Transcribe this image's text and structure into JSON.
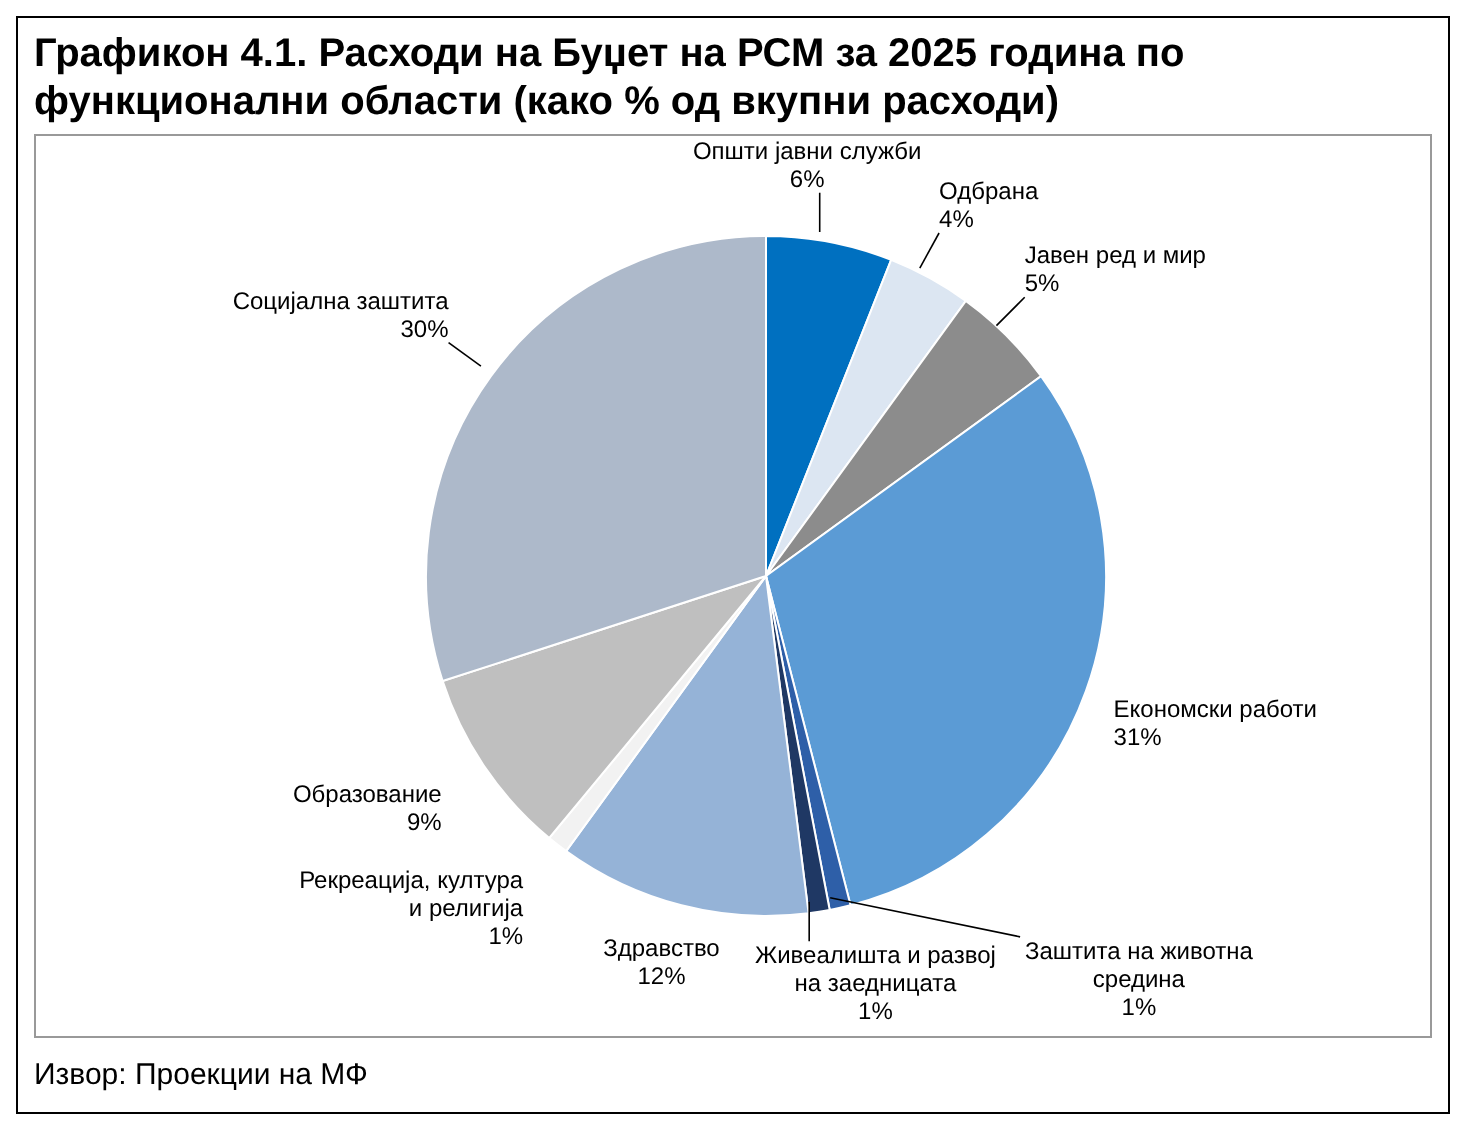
{
  "chart_data": {
    "type": "pie",
    "title": "Графикон 4.1. Расходи на Буџет на РСМ за 2025 година по функционални области (како % од вкупни расходи)",
    "categories": [
      "Општи јавни служби",
      "Одбрана",
      "Јавен ред и мир",
      "Економски работи",
      "Заштита на животна средина",
      "Живеалишта и развој на заедницата",
      "Здравство",
      "Рекреација, култура и религија",
      "Образование",
      "Социјална заштита"
    ],
    "values": [
      6,
      4,
      5,
      31,
      1,
      1,
      12,
      1,
      9,
      30
    ],
    "value_labels": [
      "6%",
      "4%",
      "5%",
      "31%",
      "1%",
      "1%",
      "12%",
      "1%",
      "9%",
      "30%"
    ],
    "colors": [
      "#0070c0",
      "#dce6f2",
      "#8c8c8c",
      "#5b9bd5",
      "#2e5fa8",
      "#1f3864",
      "#95b3d7",
      "#f2f2f2",
      "#bfbfbf",
      "#adb9ca"
    ],
    "annotations": [
      "Извор: Проекции на МФ"
    ]
  }
}
